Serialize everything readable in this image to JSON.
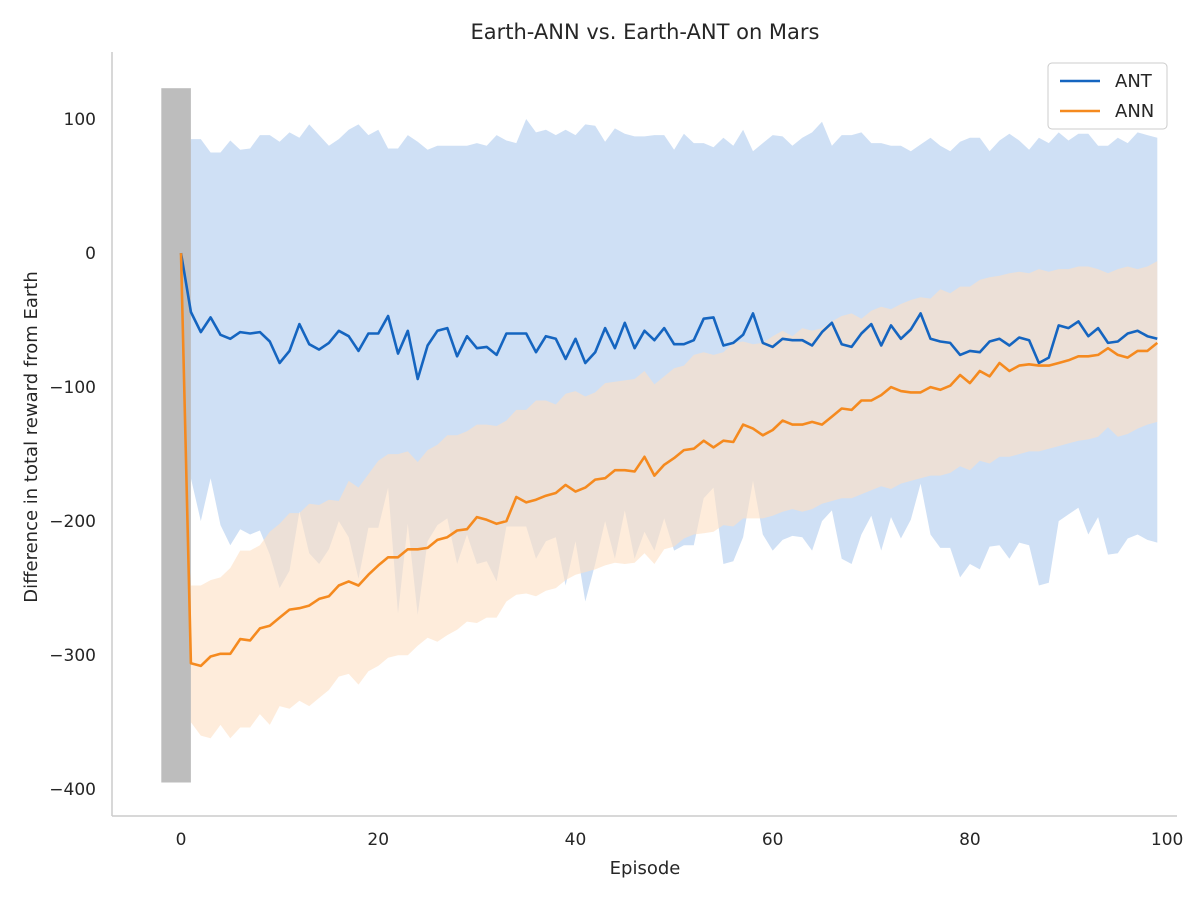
{
  "chart_data": {
    "type": "line",
    "title": "Earth-ANN vs. Earth-ANT on Mars",
    "xlabel": "Episode",
    "ylabel": "Difference in total reward from Earth",
    "xlim": [
      -7,
      101
    ],
    "ylim": [
      -420,
      150
    ],
    "x_ticks": [
      0,
      20,
      40,
      60,
      80,
      100
    ],
    "y_ticks": [
      100,
      0,
      -100,
      -200,
      -300,
      -400
    ],
    "x_tick_labels": [
      "0",
      "20",
      "40",
      "60",
      "80",
      "100"
    ],
    "y_tick_labels": [
      "100",
      "0",
      "−100",
      "−200",
      "−300",
      "−400"
    ],
    "grid": false,
    "legend_position": "top-right",
    "shaded_region": {
      "x": [
        -2,
        1
      ],
      "y": [
        -395,
        123
      ],
      "color": "#bdbdbd"
    },
    "x": [
      0,
      1,
      2,
      3,
      4,
      5,
      6,
      7,
      8,
      9,
      10,
      11,
      12,
      13,
      14,
      15,
      16,
      17,
      18,
      19,
      20,
      21,
      22,
      23,
      24,
      25,
      26,
      27,
      28,
      29,
      30,
      31,
      32,
      33,
      34,
      35,
      36,
      37,
      38,
      39,
      40,
      41,
      42,
      43,
      44,
      45,
      46,
      47,
      48,
      49,
      50,
      51,
      52,
      53,
      54,
      55,
      56,
      57,
      58,
      59,
      60,
      61,
      62,
      63,
      64,
      65,
      66,
      67,
      68,
      69,
      70,
      71,
      72,
      73,
      74,
      75,
      76,
      77,
      78,
      79,
      80,
      81,
      82,
      83,
      84,
      85,
      86,
      87,
      88,
      89,
      90,
      91,
      92,
      93,
      94,
      95,
      96,
      97,
      98,
      99
    ],
    "series": [
      {
        "name": "ANT",
        "color": "#1565c0",
        "band_color": "#cfe0f5",
        "values": [
          0,
          -44,
          -59,
          -48,
          -61,
          -64,
          -59,
          -60,
          -59,
          -66,
          -82,
          -73,
          -53,
          -68,
          -72,
          -67,
          -58,
          -62,
          -73,
          -60,
          -60,
          -47,
          -75,
          -58,
          -94,
          -69,
          -58,
          -56,
          -77,
          -62,
          -71,
          -70,
          -76,
          -60,
          -60,
          -60,
          -74,
          -62,
          -64,
          -79,
          -64,
          -82,
          -74,
          -56,
          -71,
          -52,
          -71,
          -58,
          -65,
          -56,
          -68,
          -68,
          -65,
          -49,
          -48,
          -69,
          -67,
          -61,
          -45,
          -67,
          -70,
          -64,
          -65,
          -65,
          -69,
          -59,
          -52,
          -68,
          -70,
          -60,
          -53,
          -69,
          -54,
          -64,
          -57,
          -45,
          -64,
          -66,
          -67,
          -76,
          -73,
          -74,
          -66,
          -64,
          -69,
          -63,
          -65,
          -82,
          -78,
          -54,
          -56,
          -51,
          -62,
          -56,
          -67,
          -66,
          -60,
          -58,
          -62,
          -64
        ],
        "upper": [
          0,
          85,
          85,
          75,
          75,
          84,
          77,
          78,
          88,
          88,
          83,
          90,
          86,
          96,
          88,
          80,
          85,
          92,
          96,
          88,
          92,
          78,
          78,
          88,
          83,
          77,
          80,
          80,
          80,
          80,
          82,
          80,
          88,
          84,
          82,
          100,
          90,
          92,
          88,
          92,
          88,
          96,
          95,
          83,
          93,
          89,
          87,
          87,
          88,
          88,
          77,
          89,
          82,
          82,
          79,
          86,
          80,
          92,
          76,
          82,
          88,
          87,
          80,
          86,
          90,
          98,
          80,
          88,
          88,
          90,
          82,
          82,
          80,
          80,
          76,
          81,
          86,
          80,
          76,
          83,
          86,
          86,
          76,
          84,
          89,
          84,
          77,
          86,
          82,
          90,
          84,
          89,
          89,
          80,
          80,
          86,
          82,
          90,
          88,
          86
        ],
        "lower": [
          0,
          -168,
          -200,
          -168,
          -203,
          -218,
          -206,
          -210,
          -207,
          -225,
          -250,
          -237,
          -193,
          -224,
          -232,
          -221,
          -200,
          -212,
          -243,
          -205,
          -205,
          -175,
          -269,
          -202,
          -270,
          -215,
          -203,
          -198,
          -232,
          -210,
          -232,
          -230,
          -245,
          -204,
          -204,
          -204,
          -228,
          -215,
          -212,
          -248,
          -215,
          -260,
          -232,
          -200,
          -228,
          -192,
          -228,
          -208,
          -222,
          -198,
          -222,
          -218,
          -218,
          -183,
          -175,
          -232,
          -230,
          -212,
          -170,
          -210,
          -222,
          -214,
          -211,
          -212,
          -222,
          -200,
          -192,
          -228,
          -232,
          -210,
          -196,
          -222,
          -197,
          -213,
          -199,
          -172,
          -210,
          -220,
          -220,
          -242,
          -232,
          -236,
          -219,
          -218,
          -228,
          -216,
          -218,
          -248,
          -246,
          -200,
          -195,
          -190,
          -210,
          -197,
          -225,
          -224,
          -213,
          -210,
          -214,
          -216
        ]
      },
      {
        "name": "ANN",
        "color": "#f58a1f",
        "band_color": "#fde0c5",
        "values": [
          0,
          -306,
          -308,
          -301,
          -299,
          -299,
          -288,
          -289,
          -280,
          -278,
          -272,
          -266,
          -265,
          -263,
          -258,
          -256,
          -248,
          -245,
          -248,
          -240,
          -233,
          -227,
          -227,
          -221,
          -221,
          -220,
          -214,
          -212,
          -207,
          -206,
          -197,
          -199,
          -202,
          -200,
          -182,
          -186,
          -184,
          -181,
          -179,
          -173,
          -178,
          -175,
          -169,
          -168,
          -162,
          -162,
          -163,
          -152,
          -166,
          -158,
          -153,
          -147,
          -146,
          -140,
          -145,
          -140,
          -141,
          -128,
          -131,
          -136,
          -132,
          -125,
          -128,
          -128,
          -126,
          -128,
          -122,
          -116,
          -117,
          -110,
          -110,
          -106,
          -100,
          -103,
          -104,
          -104,
          -100,
          -102,
          -99,
          -91,
          -97,
          -88,
          -92,
          -82,
          -88,
          -84,
          -83,
          -84,
          -84,
          -82,
          -80,
          -77,
          -77,
          -76,
          -71,
          -76,
          -78,
          -73,
          -73,
          -67
        ],
        "upper": [
          0,
          -248,
          -248,
          -244,
          -242,
          -235,
          -222,
          -222,
          -218,
          -208,
          -202,
          -194,
          -194,
          -187,
          -188,
          -184,
          -185,
          -170,
          -175,
          -165,
          -155,
          -150,
          -150,
          -148,
          -156,
          -147,
          -143,
          -136,
          -136,
          -133,
          -128,
          -128,
          -129,
          -125,
          -117,
          -117,
          -110,
          -110,
          -113,
          -105,
          -103,
          -107,
          -104,
          -97,
          -96,
          -95,
          -94,
          -88,
          -98,
          -92,
          -86,
          -84,
          -76,
          -74,
          -76,
          -74,
          -67,
          -66,
          -68,
          -67,
          -62,
          -58,
          -62,
          -56,
          -58,
          -56,
          -51,
          -47,
          -45,
          -49,
          -43,
          -40,
          -42,
          -38,
          -35,
          -33,
          -34,
          -27,
          -30,
          -25,
          -25,
          -20,
          -18,
          -17,
          -15,
          -14,
          -15,
          -12,
          -14,
          -12,
          -12,
          -10,
          -10,
          -12,
          -15,
          -12,
          -10,
          -12,
          -10,
          -6
        ],
        "lower": [
          0,
          -350,
          -360,
          -362,
          -352,
          -362,
          -354,
          -354,
          -344,
          -352,
          -338,
          -340,
          -334,
          -338,
          -332,
          -326,
          -316,
          -314,
          -322,
          -312,
          -308,
          -302,
          -300,
          -300,
          -293,
          -287,
          -290,
          -285,
          -281,
          -275,
          -276,
          -272,
          -272,
          -260,
          -255,
          -254,
          -256,
          -252,
          -250,
          -244,
          -240,
          -238,
          -236,
          -233,
          -231,
          -232,
          -231,
          -224,
          -232,
          -221,
          -219,
          -213,
          -210,
          -209,
          -208,
          -203,
          -204,
          -198,
          -198,
          -198,
          -196,
          -193,
          -191,
          -193,
          -191,
          -187,
          -185,
          -183,
          -183,
          -180,
          -177,
          -174,
          -176,
          -172,
          -170,
          -168,
          -166,
          -166,
          -164,
          -159,
          -162,
          -155,
          -157,
          -152,
          -152,
          -150,
          -148,
          -148,
          -146,
          -144,
          -142,
          -140,
          -139,
          -137,
          -130,
          -137,
          -135,
          -131,
          -128,
          -126
        ]
      }
    ]
  }
}
